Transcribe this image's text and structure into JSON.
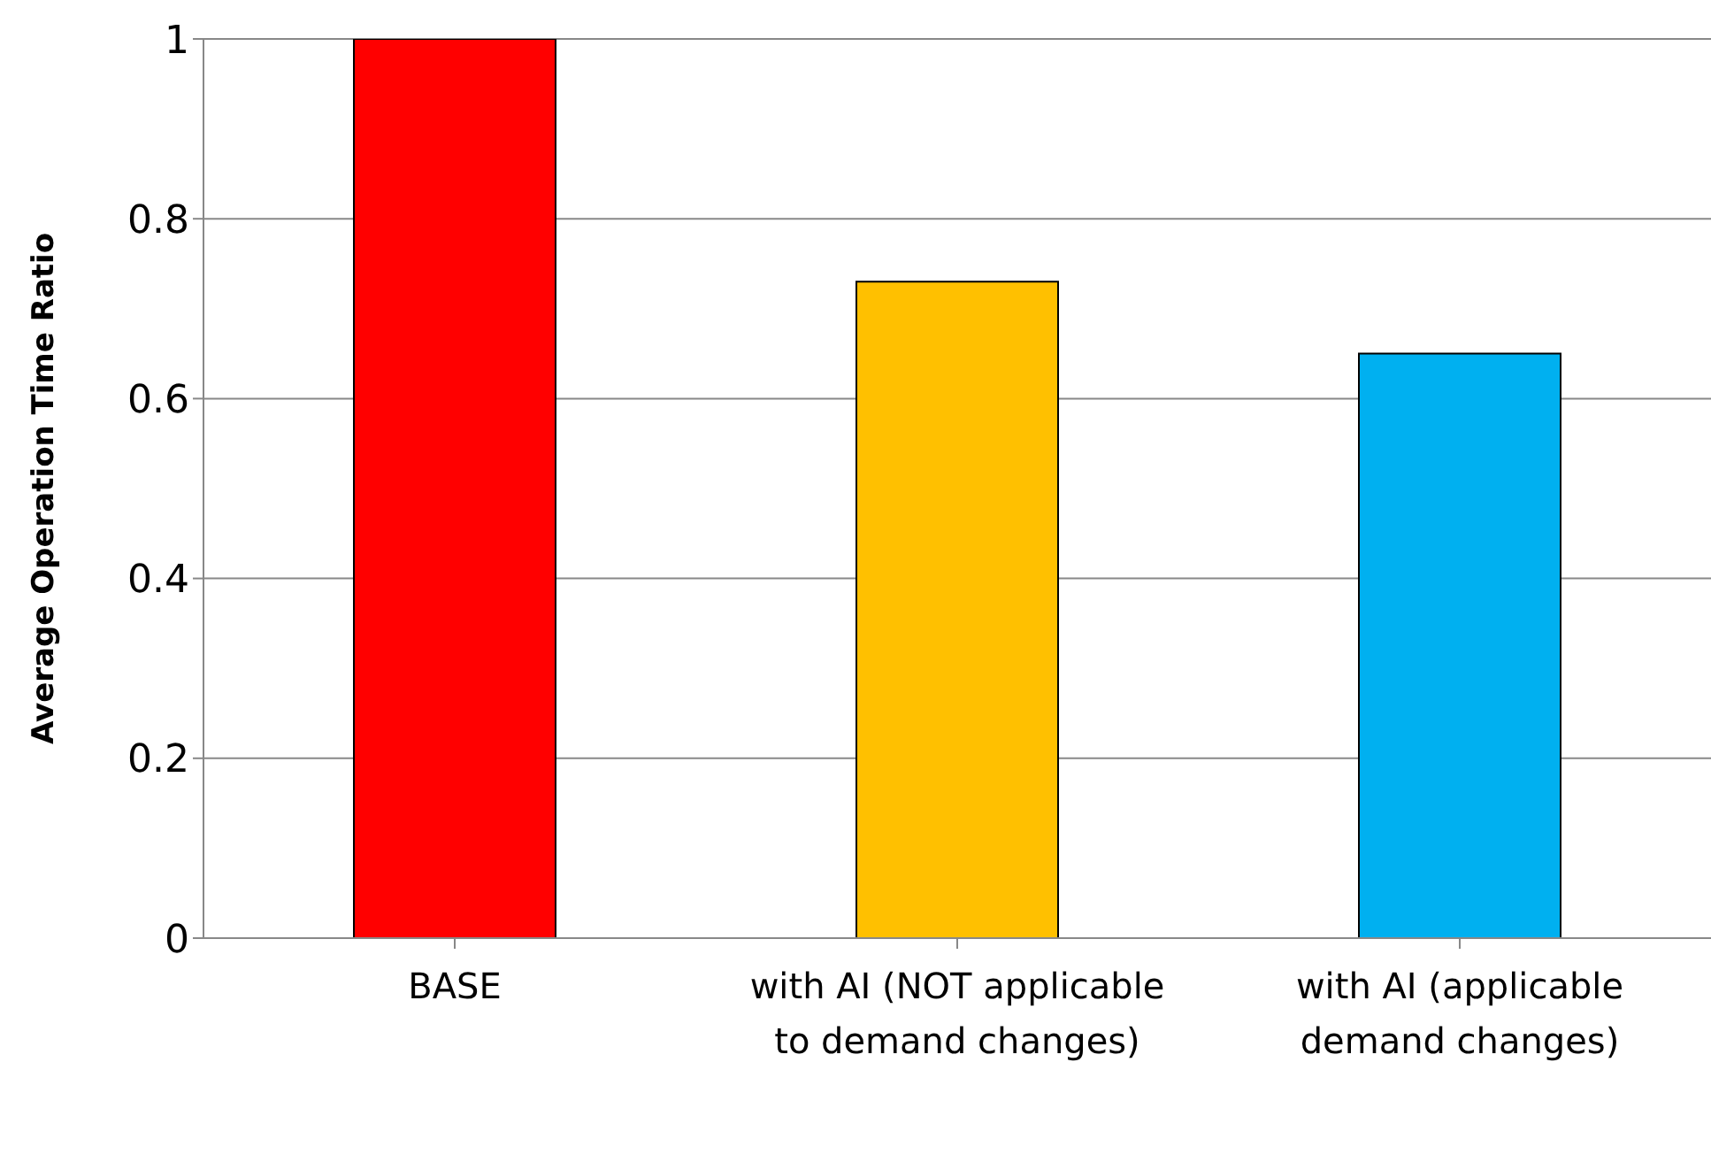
{
  "chart_data": {
    "type": "bar",
    "ylabel": "Average Operation Time Ratio",
    "categories": [
      "BASE",
      "with AI (NOT applicable to demand changes)",
      "with AI (applicable demand changes)"
    ],
    "values": [
      1,
      0.73,
      0.65
    ],
    "colors": [
      "#ff0000",
      "#ffc000",
      "#00b0f0"
    ],
    "ylim": [
      0,
      1
    ],
    "yticks": [
      0,
      0.2,
      0.4,
      0.6,
      0.8,
      1
    ],
    "grid": "y",
    "legend": false
  }
}
